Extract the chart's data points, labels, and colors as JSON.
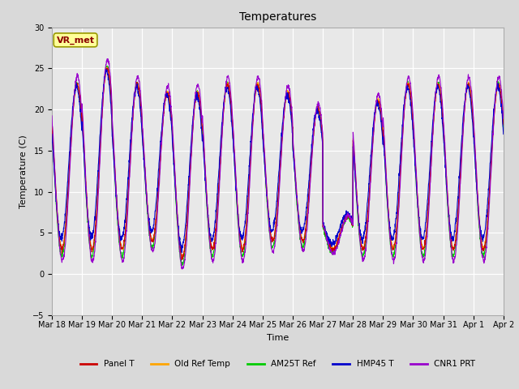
{
  "title": "Temperatures",
  "xlabel": "Time",
  "ylabel": "Temperature (C)",
  "ylim": [
    -5,
    30
  ],
  "yticks": [
    -5,
    0,
    5,
    10,
    15,
    20,
    25,
    30
  ],
  "start_day": 18,
  "end_day": 33,
  "annotation_label": "VR_met",
  "legend_entries": [
    "Panel T",
    "Old Ref Temp",
    "AM25T Ref",
    "HMP45 T",
    "CNR1 PRT"
  ],
  "legend_colors": [
    "#cc0000",
    "#ffa500",
    "#00cc00",
    "#0000cc",
    "#9900cc"
  ],
  "fig_bg": "#d9d9d9",
  "axes_bg": "#e8e8e8",
  "grid_color": "#ffffff"
}
